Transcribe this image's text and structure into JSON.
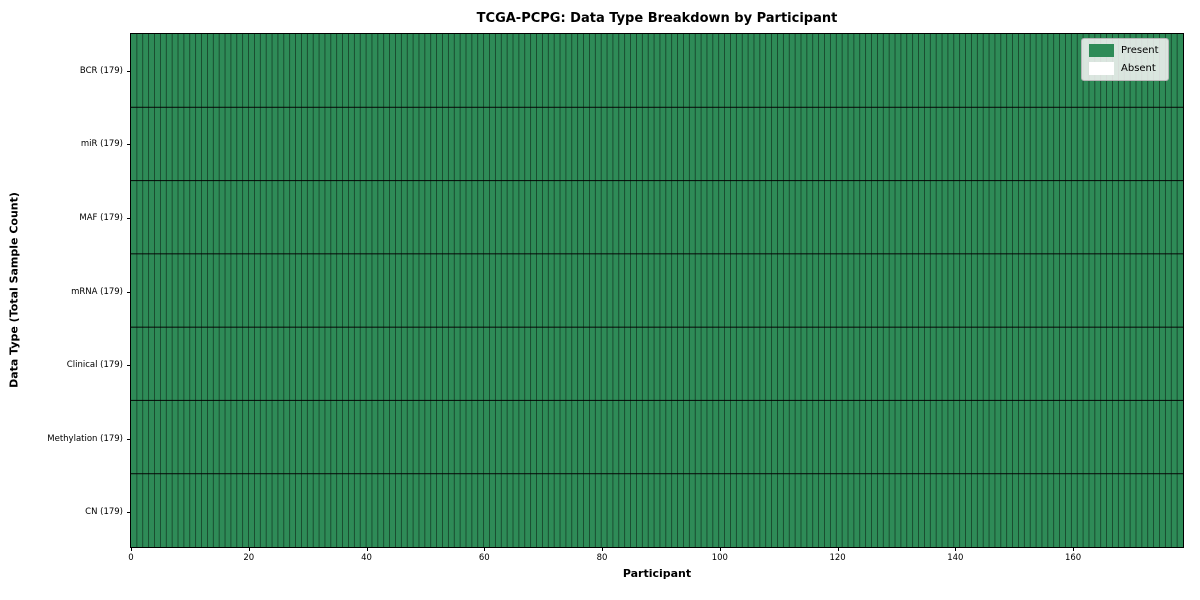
{
  "chart_data": {
    "type": "heatmap",
    "title": "TCGA-PCPG: Data Type Breakdown by Participant",
    "xlabel": "Participant",
    "ylabel": "Data Type (Total Sample Count)",
    "xlim": [
      0,
      179
    ],
    "x_ticks": [
      0,
      20,
      40,
      60,
      80,
      100,
      120,
      140,
      160
    ],
    "n_participants": 179,
    "rows": [
      {
        "label": "BCR (179)",
        "data_type": "BCR",
        "total_samples": 179,
        "present": 179,
        "absent": 0
      },
      {
        "label": "miR (179)",
        "data_type": "miR",
        "total_samples": 179,
        "present": 179,
        "absent": 0
      },
      {
        "label": "MAF (179)",
        "data_type": "MAF",
        "total_samples": 179,
        "present": 179,
        "absent": 0
      },
      {
        "label": "mRNA (179)",
        "data_type": "mRNA",
        "total_samples": 179,
        "present": 179,
        "absent": 0
      },
      {
        "label": "Clinical (179)",
        "data_type": "Clinical",
        "total_samples": 179,
        "present": 179,
        "absent": 0
      },
      {
        "label": "Methylation (179)",
        "data_type": "Methylation",
        "total_samples": 179,
        "present": 179,
        "absent": 0
      },
      {
        "label": "CN (179)",
        "data_type": "CN",
        "total_samples": 179,
        "present": 179,
        "absent": 0
      }
    ],
    "legend": {
      "position": "upper right",
      "entries": [
        {
          "label": "Present",
          "color": "#2e8b57"
        },
        {
          "label": "Absent",
          "color": "#ffffff"
        }
      ]
    },
    "colors": {
      "present": "#2e8b57",
      "absent": "#ffffff",
      "cell_edge": "rgba(0,0,0,0.55)",
      "row_separator": "rgba(0,0,0,0.85)"
    },
    "grid": "cell-edges-on"
  }
}
